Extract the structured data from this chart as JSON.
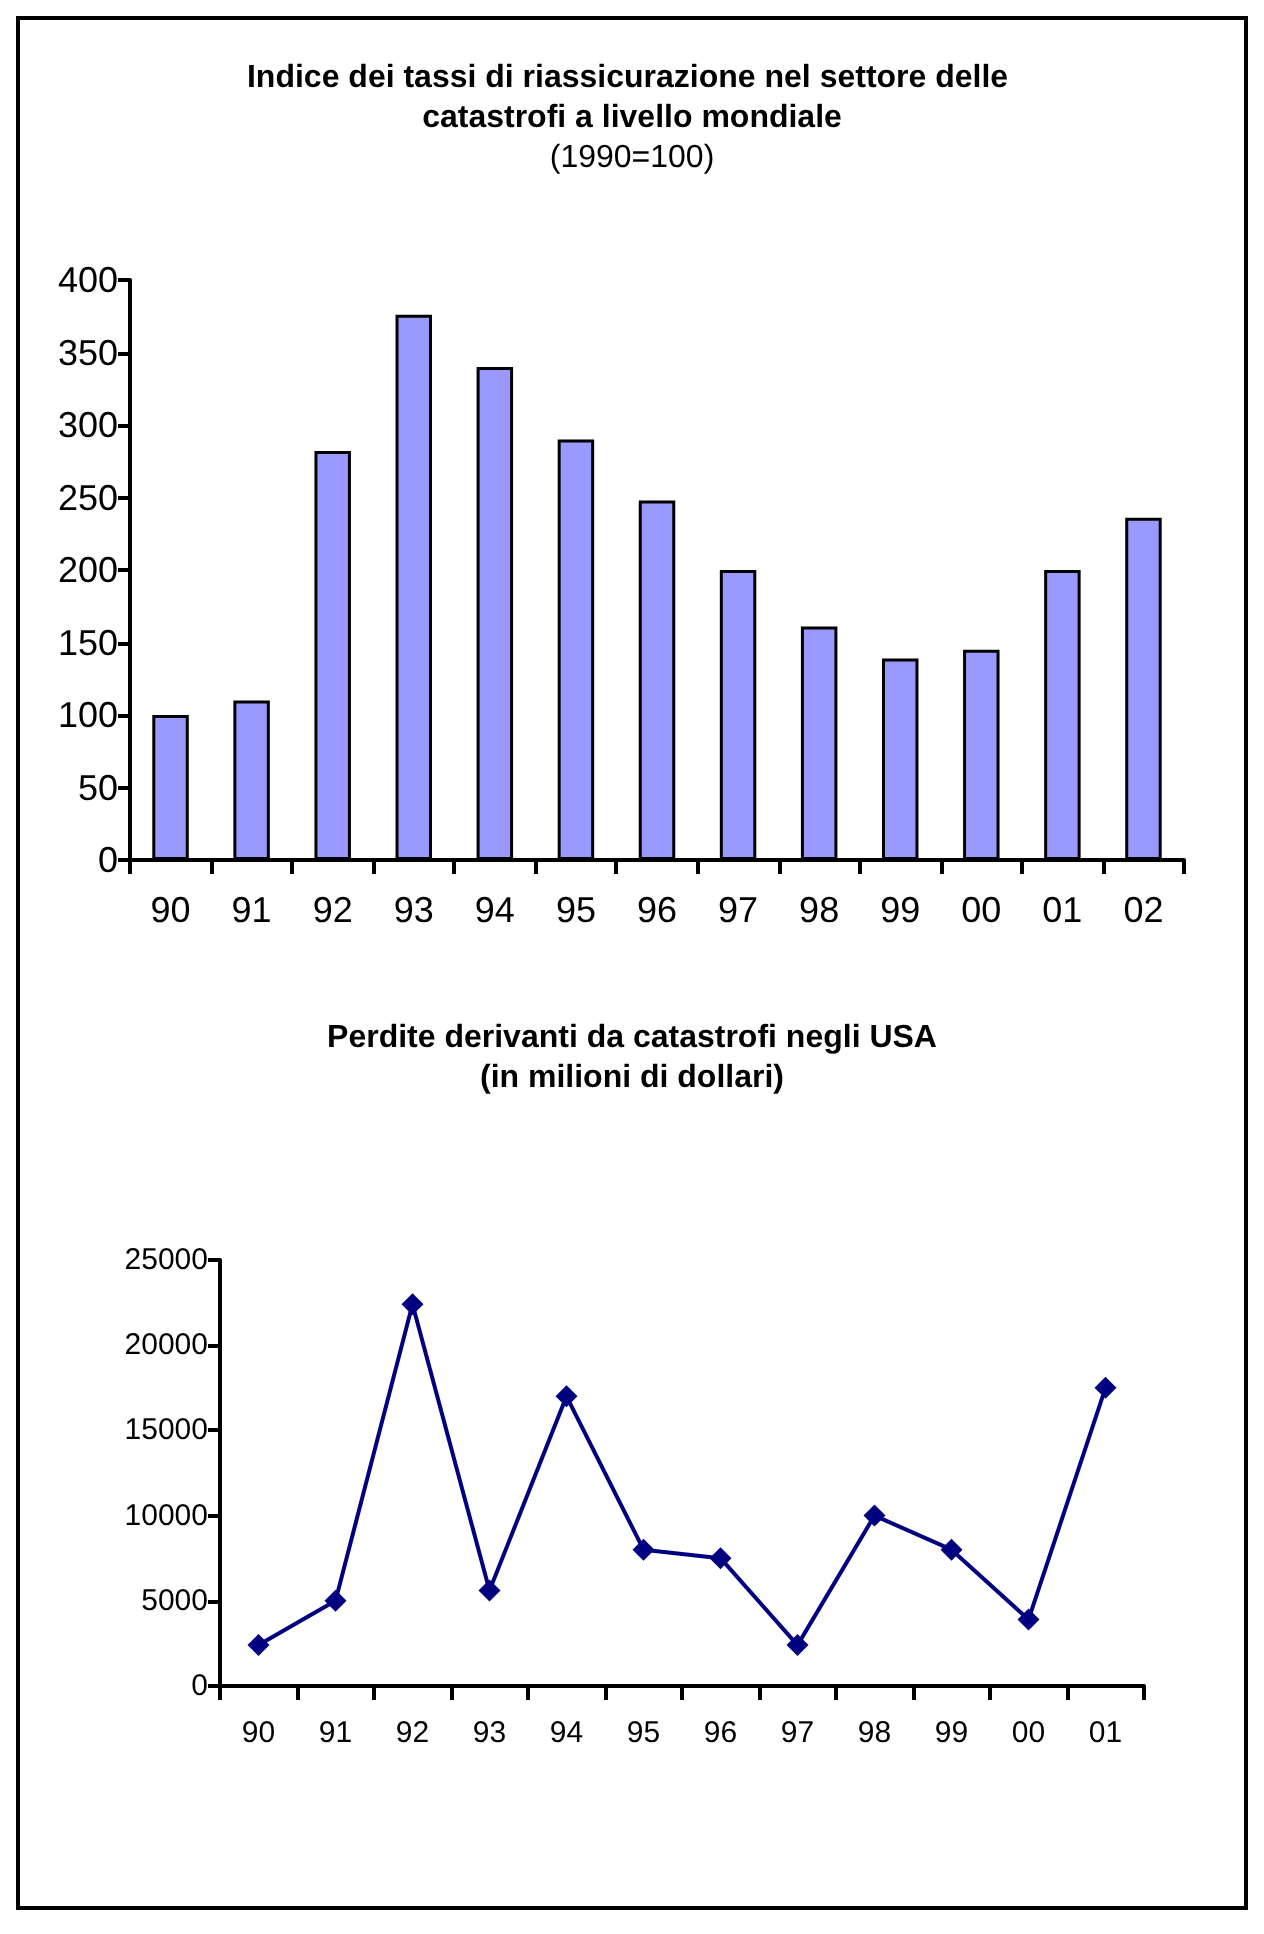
{
  "chart_data": [
    {
      "type": "bar",
      "title": "Indice dei tassi di riassicurazione nel settore delle catastrofi a livello mondiale",
      "subtitle": "(1990=100)",
      "categories": [
        "90",
        "91",
        "92",
        "93",
        "94",
        "95",
        "96",
        "97",
        "98",
        "99",
        "00",
        "01",
        "02"
      ],
      "values": [
        100,
        110,
        282,
        376,
        340,
        290,
        248,
        200,
        161,
        139,
        145,
        200,
        236
      ],
      "color": "#9999ff",
      "ylim": [
        0,
        400
      ],
      "yticks": [
        0,
        50,
        100,
        150,
        200,
        250,
        300,
        350,
        400
      ],
      "grid": false
    },
    {
      "type": "line",
      "title": "Perdite derivanti da catastrofi negli USA",
      "subtitle": "(in milioni di dollari)",
      "categories": [
        "90",
        "91",
        "92",
        "93",
        "94",
        "95",
        "96",
        "97",
        "98",
        "99",
        "00",
        "01"
      ],
      "values": [
        2400,
        5000,
        22400,
        5600,
        17000,
        8000,
        7500,
        2400,
        10000,
        8000,
        3900,
        17500
      ],
      "color": "#000080",
      "marker": "diamond",
      "line_style": "solid",
      "ylim": [
        0,
        25000
      ],
      "yticks": [
        0,
        5000,
        10000,
        15000,
        20000,
        25000
      ],
      "grid": false
    }
  ]
}
